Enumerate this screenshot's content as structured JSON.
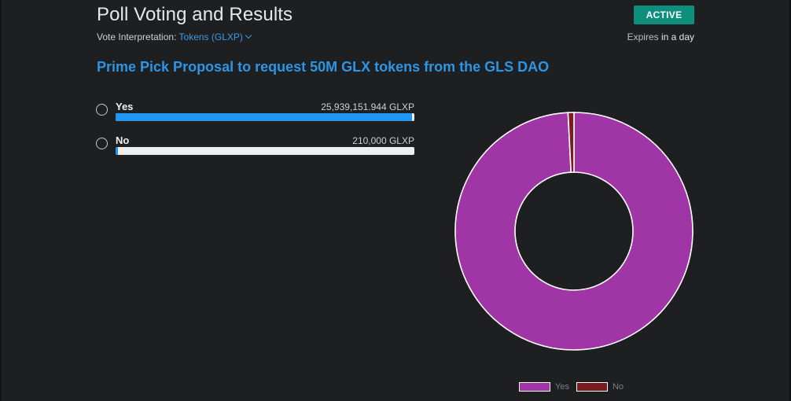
{
  "header": {
    "title": "Poll Voting and Results",
    "status_badge": "ACTIVE",
    "interpretation_label": "Vote Interpretation:",
    "interpretation_value": "Tokens (GLXP)",
    "expires_prefix": "Expires",
    "expires_value": "in a day"
  },
  "proposal": {
    "title": "Prime Pick Proposal to request 50M GLX tokens from the GLS DAO"
  },
  "options": [
    {
      "label": "Yes",
      "amount": "25,939,151.944 GLXP",
      "share": 0.99197
    },
    {
      "label": "No",
      "amount": "210,000 GLXP",
      "share": 0.00803
    }
  ],
  "colors": {
    "accent": "#2d95e6",
    "badge": "#0e8f7e",
    "bar_fill": "#2196f3",
    "bar_track": "#efefef",
    "yes_slice": "#a035a6",
    "no_slice": "#7a1c20",
    "background": "#1d1f21"
  },
  "chart_data": {
    "type": "pie",
    "categories": [
      "Yes",
      "No"
    ],
    "values": [
      25939151.944,
      210000
    ],
    "title": "",
    "legend_position": "bottom"
  },
  "legend": {
    "yes": "Yes",
    "no": "No"
  }
}
